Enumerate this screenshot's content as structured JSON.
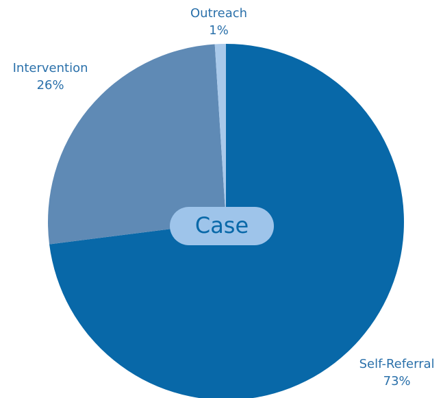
{
  "chart_data": {
    "type": "pie",
    "center_label": "Case",
    "categories": [
      "Self-Referral",
      "Intervention",
      "Outreach"
    ],
    "values": [
      73,
      26,
      1
    ],
    "value_labels": [
      "73%",
      "26%",
      "1%"
    ],
    "colors": [
      "#0868a8",
      "#5f8ab5",
      "#a9c9ea"
    ]
  }
}
